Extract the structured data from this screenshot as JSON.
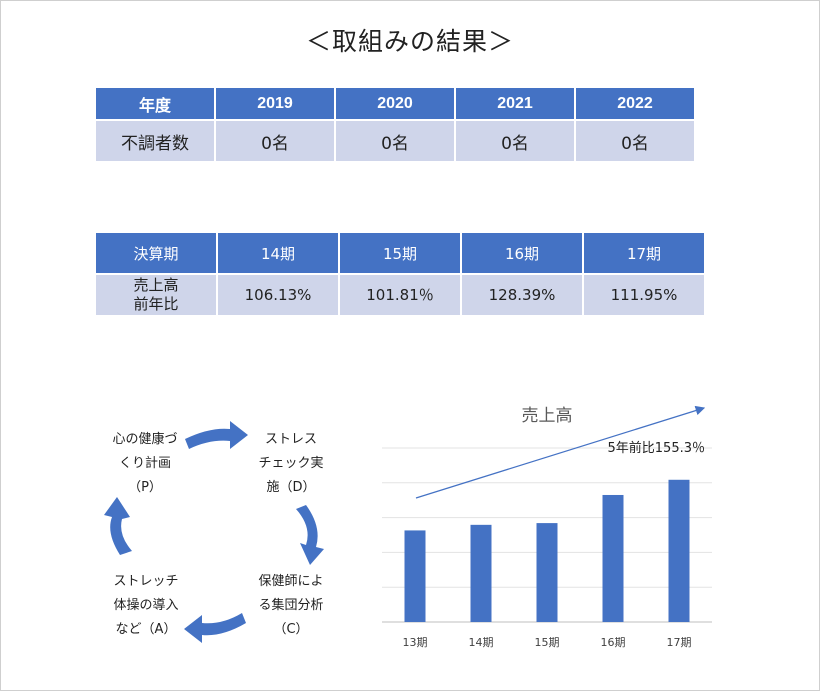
{
  "title": "＜取組みの結果＞",
  "table1": {
    "header": [
      "年度",
      "2019",
      "2020",
      "2021",
      "2022"
    ],
    "row": [
      "不調者数",
      "0名",
      "0名",
      "0名",
      "0名"
    ]
  },
  "table2": {
    "header": [
      "決算期",
      "14期",
      "15期",
      "16期",
      "17期"
    ],
    "row_label_1": "売上高",
    "row_label_2": "前年比",
    "row": [
      "106.13%",
      "101.81％",
      "128.39%",
      "111.95%"
    ]
  },
  "cycle": {
    "p_1": "心の健康づ",
    "p_2": "くり計画",
    "p_3": "（P）",
    "d_1": "ストレス",
    "d_2": "チェック実",
    "d_3": "施（D）",
    "c_1": "保健師によ",
    "c_2": "る集団分析",
    "c_3": "（C）",
    "a_1": "ストレッチ",
    "a_2": "体操の導入",
    "a_3": "など（A）",
    "arrow_color": "#4472c4"
  },
  "chart_data": {
    "type": "bar",
    "title": "売上高",
    "categories": [
      "13期",
      "14期",
      "15期",
      "16期",
      "17期"
    ],
    "values": [
      100,
      106.1,
      108.0,
      138.7,
      155.3
    ],
    "ylim": [
      0,
      190
    ],
    "grid": true,
    "annotation": "5年前比155.3％",
    "bar_color": "#4472c4"
  }
}
